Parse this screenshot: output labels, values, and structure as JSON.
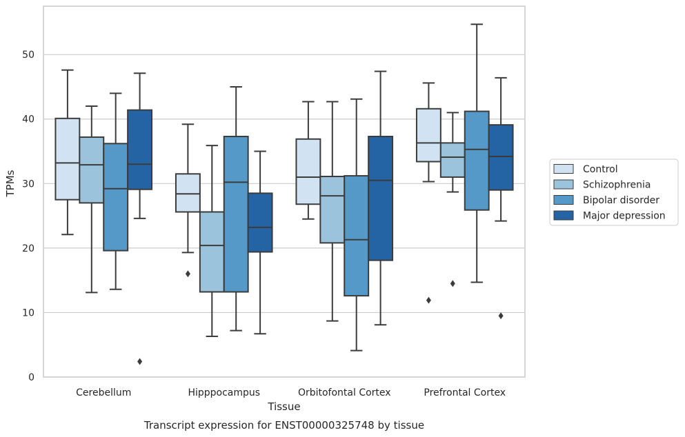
{
  "chart_data": {
    "type": "boxplot",
    "caption": "Transcript expression for ENST00000325748 by tissue",
    "xlabel": "Tissue",
    "ylabel": "TPMs",
    "ylim": [
      0,
      57.5
    ],
    "yticks": [
      0,
      10,
      20,
      30,
      40,
      50
    ],
    "grid": "horizontal",
    "legend_position": "right",
    "categories": [
      "Cerebellum",
      "Hipppocampus",
      "Orbitofontal Cortex",
      "Prefrontal Cortex"
    ],
    "series": [
      {
        "name": "Control",
        "color": "#d1e2f2",
        "boxes": [
          {
            "whisker_low": 22.1,
            "q1": 27.5,
            "median": 33.2,
            "q3": 40.1,
            "whisker_high": 47.6,
            "outliers": []
          },
          {
            "whisker_low": 19.3,
            "q1": 25.6,
            "median": 28.4,
            "q3": 31.5,
            "whisker_high": 39.2,
            "outliers": [
              16.0
            ]
          },
          {
            "whisker_low": 24.5,
            "q1": 26.8,
            "median": 31.0,
            "q3": 36.9,
            "whisker_high": 42.7,
            "outliers": []
          },
          {
            "whisker_low": 30.3,
            "q1": 33.4,
            "median": 36.3,
            "q3": 41.6,
            "whisker_high": 45.6,
            "outliers": [
              11.9
            ]
          }
        ]
      },
      {
        "name": "Schizophrenia",
        "color": "#9bc3dc",
        "boxes": [
          {
            "whisker_low": 13.1,
            "q1": 27.0,
            "median": 32.9,
            "q3": 37.2,
            "whisker_high": 42.0,
            "outliers": []
          },
          {
            "whisker_low": 6.3,
            "q1": 13.2,
            "median": 20.4,
            "q3": 25.6,
            "whisker_high": 35.9,
            "outliers": []
          },
          {
            "whisker_low": 8.7,
            "q1": 20.8,
            "median": 28.1,
            "q3": 31.1,
            "whisker_high": 42.7,
            "outliers": []
          },
          {
            "whisker_low": 28.7,
            "q1": 31.0,
            "median": 34.1,
            "q3": 36.3,
            "whisker_high": 41.0,
            "outliers": [
              14.5
            ]
          }
        ]
      },
      {
        "name": "Bipolar disorder",
        "color": "#5499c7",
        "boxes": [
          {
            "whisker_low": 13.6,
            "q1": 19.6,
            "median": 29.2,
            "q3": 36.2,
            "whisker_high": 44.0,
            "outliers": []
          },
          {
            "whisker_low": 7.2,
            "q1": 13.2,
            "median": 30.2,
            "q3": 37.3,
            "whisker_high": 45.0,
            "outliers": []
          },
          {
            "whisker_low": 4.1,
            "q1": 12.6,
            "median": 21.3,
            "q3": 31.2,
            "whisker_high": 43.1,
            "outliers": []
          },
          {
            "whisker_low": 14.7,
            "q1": 25.9,
            "median": 35.3,
            "q3": 41.2,
            "whisker_high": 54.7,
            "outliers": []
          }
        ]
      },
      {
        "name": "Major depression",
        "color": "#2464a5",
        "boxes": [
          {
            "whisker_low": 24.6,
            "q1": 29.1,
            "median": 33.0,
            "q3": 41.4,
            "whisker_high": 47.1,
            "outliers": [
              2.4
            ]
          },
          {
            "whisker_low": 6.7,
            "q1": 19.4,
            "median": 23.2,
            "q3": 28.5,
            "whisker_high": 35.0,
            "outliers": []
          },
          {
            "whisker_low": 8.1,
            "q1": 18.1,
            "median": 30.5,
            "q3": 37.3,
            "whisker_high": 47.4,
            "outliers": []
          },
          {
            "whisker_low": 24.2,
            "q1": 29.0,
            "median": 34.2,
            "q3": 39.1,
            "whisker_high": 46.4,
            "outliers": [
              9.5
            ]
          }
        ]
      }
    ]
  }
}
